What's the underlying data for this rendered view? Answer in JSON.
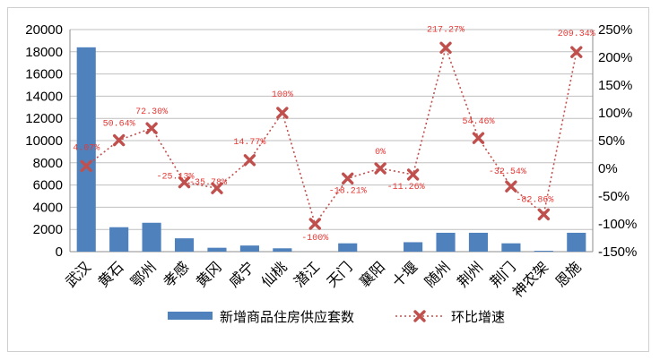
{
  "chart_data": {
    "type": "bar",
    "categories": [
      "武汉",
      "黄石",
      "鄂州",
      "孝感",
      "黄冈",
      "咸宁",
      "仙桃",
      "潜江",
      "天门",
      "襄阳",
      "十堰",
      "随州",
      "荆州",
      "荆门",
      "神农架",
      "恩施"
    ],
    "series": [
      {
        "name": "新增商品住房供应套数",
        "type": "bar",
        "axis": "left",
        "color": "#4f81bd",
        "values": [
          18400,
          2200,
          2600,
          1200,
          350,
          550,
          300,
          0,
          750,
          0,
          850,
          1700,
          1700,
          750,
          80,
          1700
        ]
      },
      {
        "name": "环比增速",
        "type": "line",
        "axis": "right",
        "color": "#c0504d",
        "values": [
          4.07,
          50.64,
          72.3,
          -25.13,
          -35.78,
          14.77,
          100,
          -100,
          -18.21,
          0,
          -11.26,
          217.27,
          54.46,
          -32.54,
          -82.86,
          209.34
        ],
        "labels": [
          "4.07%",
          "50.64%",
          "72.30%",
          "-25.13%",
          "-35.78%",
          "14.77%",
          "100%",
          "-100%",
          "-18.21%",
          "0%",
          "-11.26%",
          "217.27%",
          "54.46%",
          "-32.54%",
          "-82.86%",
          "209.34%"
        ]
      }
    ],
    "y_left": {
      "min": 0,
      "max": 20000,
      "step": 2000,
      "ticks": [
        "0",
        "2000",
        "4000",
        "6000",
        "8000",
        "10000",
        "12000",
        "14000",
        "16000",
        "18000",
        "20000"
      ]
    },
    "y_right": {
      "min": -150,
      "max": 250,
      "step": 50,
      "ticks": [
        "-150%",
        "-100%",
        "-50%",
        "0%",
        "50%",
        "100%",
        "150%",
        "200%",
        "250%"
      ]
    },
    "grid": true,
    "legend": "bottom"
  }
}
